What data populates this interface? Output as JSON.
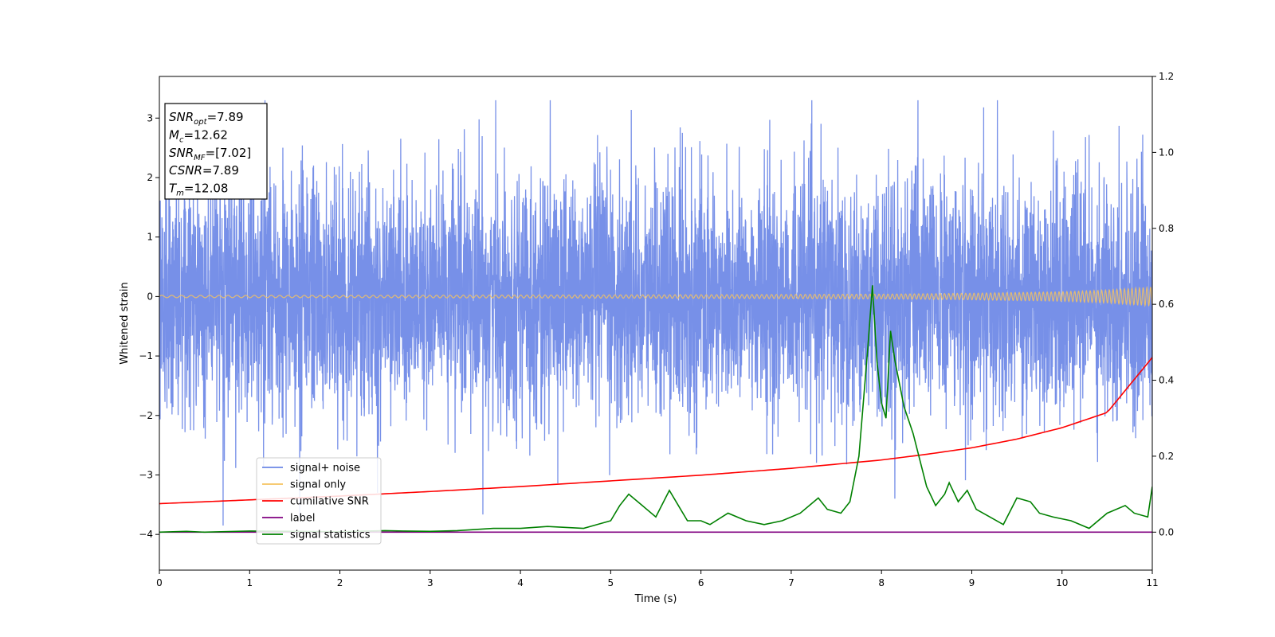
{
  "chart_data": {
    "type": "line",
    "xlabel": "Time (s)",
    "ylabel": "Whitened strain",
    "xlim": [
      0,
      11
    ],
    "ylim_left": [
      -4.6,
      3.7
    ],
    "ylim_right": [
      -0.1,
      1.2
    ],
    "x_ticks": [
      "0",
      "1",
      "2",
      "3",
      "4",
      "5",
      "6",
      "7",
      "8",
      "9",
      "10",
      "11"
    ],
    "y_ticks_left": [
      {
        "value": -4,
        "label": "−4"
      },
      {
        "value": -3,
        "label": "−3"
      },
      {
        "value": -2,
        "label": "−2"
      },
      {
        "value": -1,
        "label": "−1"
      },
      {
        "value": 0,
        "label": "0"
      },
      {
        "value": 1,
        "label": "1"
      },
      {
        "value": 2,
        "label": "2"
      },
      {
        "value": 3,
        "label": "3"
      }
    ],
    "y_ticks_right": [
      "0.0",
      "0.2",
      "0.4",
      "0.6",
      "0.8",
      "1.0",
      "1.2"
    ],
    "legend": {
      "placement": "lower-left",
      "entries": [
        {
          "label": "signal+ noise",
          "color": "#6b87e6"
        },
        {
          "label": "signal only",
          "color": "#f5c35f"
        },
        {
          "label": "cumilative SNR",
          "color": "#ff0000"
        },
        {
          "label": "label",
          "color": "#800080"
        },
        {
          "label": "signal statistics",
          "color": "#008000"
        }
      ]
    },
    "annotation": [
      {
        "base": "SNR",
        "sub": "opt",
        "value": "=7.89"
      },
      {
        "base": "M",
        "sub": "c",
        "value": "=12.62"
      },
      {
        "base": "SNR",
        "sub": "MF",
        "value": "=[7.02]"
      },
      {
        "base": "CSNR",
        "sub": "",
        "value": "=7.89"
      },
      {
        "base": "T",
        "sub": "m",
        "value": "=12.08"
      }
    ],
    "series": [
      {
        "name": "signal+ noise",
        "axis": "left",
        "color": "#6b87e6",
        "noise_std": 1.0,
        "n_samples": 5500
      },
      {
        "name": "signal only",
        "axis": "left",
        "color": "#f5c35f",
        "envelope": {
          "x": [
            0,
            2,
            4,
            6,
            8,
            9,
            10,
            10.5,
            11
          ],
          "y": [
            0.02,
            0.02,
            0.025,
            0.03,
            0.04,
            0.055,
            0.08,
            0.11,
            0.16
          ]
        }
      },
      {
        "name": "cumilative SNR",
        "axis": "right",
        "color": "#ff0000",
        "x": [
          0,
          1,
          2,
          3,
          4,
          5,
          6,
          7,
          8,
          8.5,
          9,
          9.5,
          10,
          10.5,
          11
        ],
        "y": [
          0.075,
          0.085,
          0.095,
          0.107,
          0.12,
          0.135,
          0.15,
          0.168,
          0.19,
          0.205,
          0.222,
          0.245,
          0.275,
          0.315,
          0.46
        ]
      },
      {
        "name": "label",
        "axis": "right",
        "color": "#800080",
        "x": [
          0,
          11
        ],
        "y": [
          0.0,
          0.0
        ]
      },
      {
        "name": "signal statistics",
        "axis": "right",
        "color": "#008000",
        "x": [
          0,
          0.3,
          0.5,
          1.0,
          1.5,
          2.0,
          2.5,
          2.7,
          3.0,
          3.3,
          3.7,
          4.0,
          4.3,
          4.7,
          4.85,
          5.0,
          5.1,
          5.2,
          5.35,
          5.5,
          5.65,
          5.75,
          5.85,
          6.0,
          6.1,
          6.3,
          6.5,
          6.7,
          6.9,
          7.1,
          7.3,
          7.4,
          7.55,
          7.65,
          7.75,
          7.85,
          7.9,
          7.95,
          8.0,
          8.05,
          8.1,
          8.15,
          8.25,
          8.35,
          8.5,
          8.6,
          8.7,
          8.75,
          8.85,
          8.95,
          9.05,
          9.2,
          9.35,
          9.5,
          9.65,
          9.75,
          9.9,
          10.1,
          10.3,
          10.5,
          10.7,
          10.8,
          10.95,
          11.0
        ],
        "y": [
          0.0,
          0.002,
          0.0,
          0.003,
          0.002,
          0.001,
          0.004,
          0.003,
          0.002,
          0.004,
          0.01,
          0.01,
          0.015,
          0.01,
          0.02,
          0.03,
          0.07,
          0.1,
          0.07,
          0.04,
          0.11,
          0.07,
          0.03,
          0.03,
          0.02,
          0.05,
          0.03,
          0.02,
          0.03,
          0.05,
          0.09,
          0.06,
          0.05,
          0.08,
          0.2,
          0.49,
          0.65,
          0.45,
          0.34,
          0.3,
          0.53,
          0.45,
          0.33,
          0.26,
          0.12,
          0.07,
          0.1,
          0.13,
          0.08,
          0.11,
          0.06,
          0.04,
          0.02,
          0.09,
          0.08,
          0.05,
          0.04,
          0.03,
          0.01,
          0.05,
          0.07,
          0.05,
          0.04,
          0.12
        ]
      }
    ]
  }
}
